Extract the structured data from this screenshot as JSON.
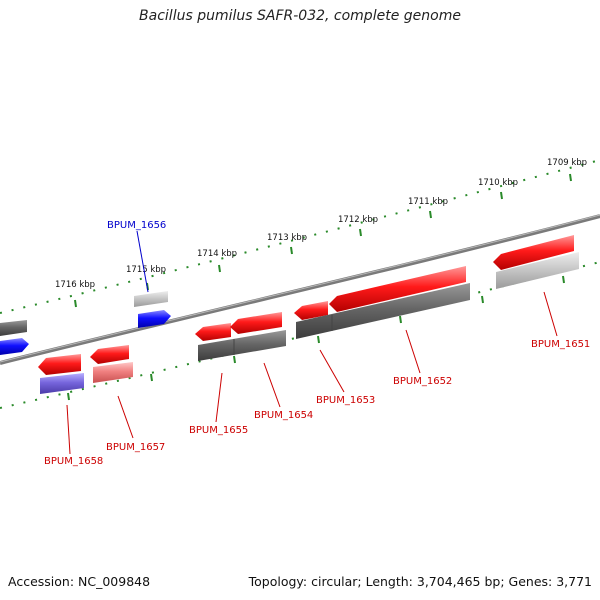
{
  "title": "Bacillus pumilus SAFR-032, complete genome",
  "footer": {
    "accession": "Accession: NC_009848",
    "topology": "Topology: circular; Length: 3,704,465 bp; Genes: 3,771"
  },
  "scale_labels": [
    "1716 kbp",
    "1715 kbp",
    "1714 kbp",
    "1713 kbp",
    "1712 kbp",
    "1711 kbp",
    "1710 kbp",
    "1709 kbp"
  ],
  "gene_labels": [
    {
      "name": "BPUM_1656",
      "color": "#0000cc"
    },
    {
      "name": "BPUM_1658",
      "color": "#cc0000"
    },
    {
      "name": "BPUM_1657",
      "color": "#cc0000"
    },
    {
      "name": "BPUM_1655",
      "color": "#cc0000"
    },
    {
      "name": "BPUM_1654",
      "color": "#cc0000"
    },
    {
      "name": "BPUM_1653",
      "color": "#cc0000"
    },
    {
      "name": "BPUM_1652",
      "color": "#cc0000"
    },
    {
      "name": "BPUM_1651",
      "color": "#cc0000"
    }
  ],
  "colors": {
    "backbone": "#7a7a7a",
    "scale_ticks": "#2a8a2a",
    "forward_gene": "#ff0000",
    "reverse_gene": "#0000ff",
    "light_red": "#f08080",
    "purple_blue": "#7766dd",
    "dark_gray": "#606060",
    "light_gray": "#bdbdbd"
  }
}
